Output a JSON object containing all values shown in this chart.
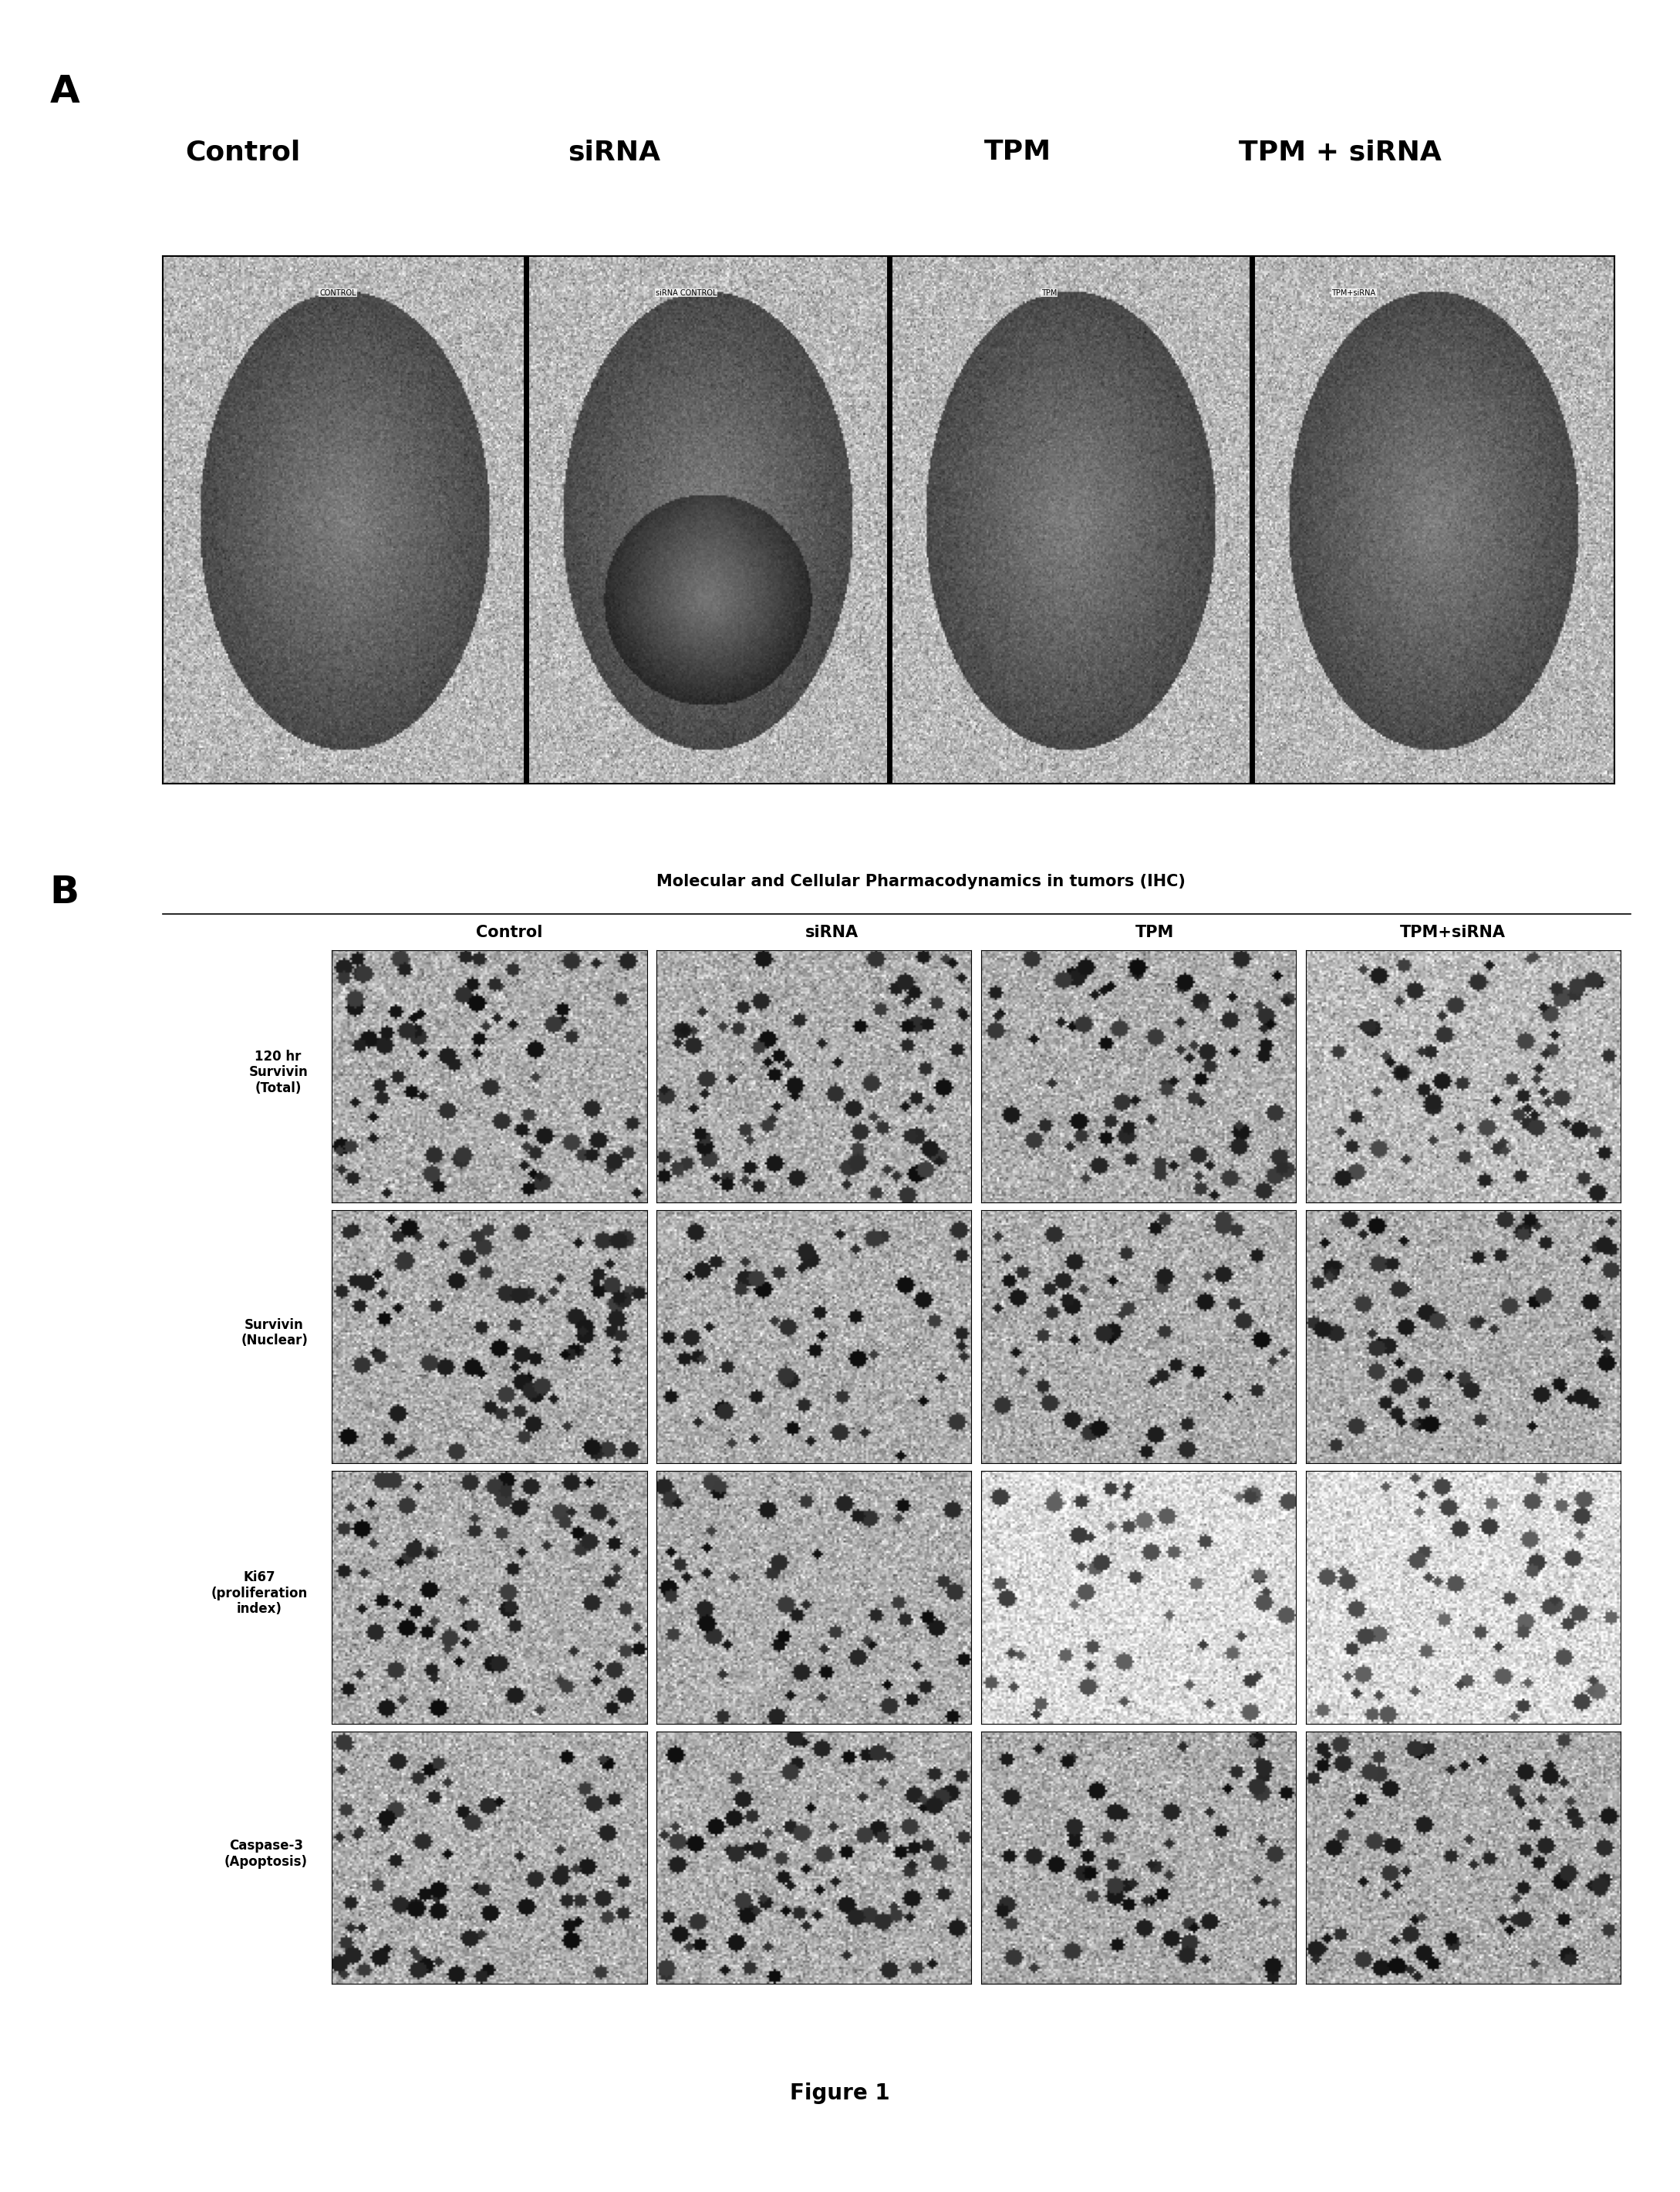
{
  "fig_width": 21.78,
  "fig_height": 28.42,
  "background_color": "#ffffff",
  "panel_A_label": "A",
  "panel_B_label": "B",
  "panel_A_col_labels": [
    "Control",
    "siRNA",
    "TPM",
    "TPM + siRNA"
  ],
  "panel_A_image_labels": [
    "CONTROL",
    "siRNA CONTROL",
    "TPM",
    "TPM+siRNA"
  ],
  "panel_B_title": "Molecular and Cellular Pharmacodynamics in tumors (IHC)",
  "panel_B_col_labels": [
    "Control",
    "siRNA",
    "TPM",
    "TPM+siRNA"
  ],
  "panel_B_row_labels": [
    "120 hr\nSurvivin\n(Total)",
    "Survivin\n(Nuclear)",
    "Ki67\n(proliferation\nindex)",
    "Caspase-3\n(Apoptosis)"
  ],
  "figure_caption": "Figure 1"
}
